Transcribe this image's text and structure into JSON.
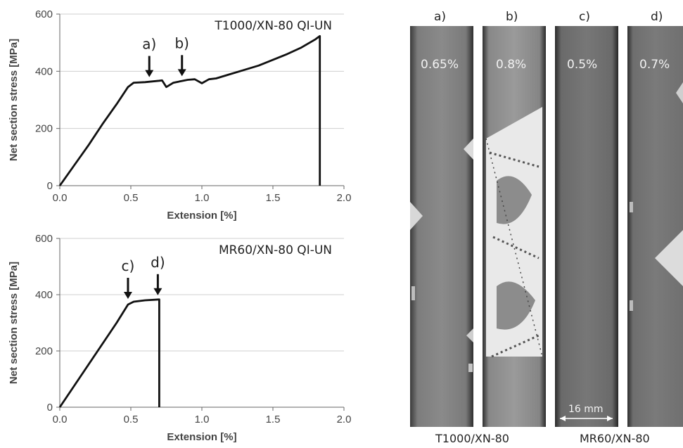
{
  "chart_data": [
    {
      "type": "line",
      "title": "T1000/XN-80 QI-UN",
      "xlabel": "Extension [%]",
      "ylabel": "Net section stress [MPa]",
      "xlim": [
        0,
        2.0
      ],
      "ylim": [
        0,
        600
      ],
      "xticks": [
        "0.0",
        "0.5",
        "1.0",
        "1.5",
        "2.0"
      ],
      "yticks": [
        "0",
        "200",
        "400",
        "600"
      ],
      "grid": true,
      "series": [
        {
          "x": [
            0,
            0.1,
            0.2,
            0.3,
            0.4,
            0.48,
            0.52,
            0.6,
            0.7,
            0.72,
            0.75,
            0.8,
            0.9,
            0.95,
            1.0,
            1.05,
            1.1,
            1.2,
            1.3,
            1.4,
            1.5,
            1.6,
            1.7,
            1.8,
            1.83,
            1.83
          ],
          "y": [
            0,
            70,
            140,
            215,
            285,
            345,
            360,
            362,
            367,
            368,
            345,
            360,
            370,
            372,
            358,
            372,
            375,
            390,
            405,
            420,
            440,
            460,
            483,
            512,
            523,
            0
          ]
        }
      ],
      "annotations": [
        {
          "text": "a)",
          "x": 0.63,
          "y": 365
        },
        {
          "text": "b)",
          "x": 0.86,
          "y": 368
        }
      ]
    },
    {
      "type": "line",
      "title": "MR60/XN-80 QI-UN",
      "xlabel": "Extension [%]",
      "ylabel": "Net section stress [MPa]",
      "xlim": [
        0,
        2.0
      ],
      "ylim": [
        0,
        600
      ],
      "xticks": [
        "0.0",
        "0.5",
        "1.0",
        "1.5",
        "2.0"
      ],
      "yticks": [
        "0",
        "200",
        "400",
        "600"
      ],
      "grid": true,
      "series": [
        {
          "x": [
            0,
            0.1,
            0.2,
            0.3,
            0.4,
            0.48,
            0.52,
            0.6,
            0.7,
            0.7
          ],
          "y": [
            0,
            75,
            150,
            225,
            300,
            365,
            375,
            380,
            383,
            0
          ]
        }
      ],
      "annotations": [
        {
          "text": "c)",
          "x": 0.48,
          "y": 370
        },
        {
          "text": "d)",
          "x": 0.69,
          "y": 383
        }
      ]
    }
  ],
  "xray_panels": [
    {
      "label": "a)",
      "percent": "0.65%"
    },
    {
      "label": "b)",
      "percent": "0.8%"
    },
    {
      "label": "c)",
      "percent": "0.5%"
    },
    {
      "label": "d)",
      "percent": "0.7%"
    }
  ],
  "group_labels": [
    "T1000/XN-80",
    "MR60/XN-80"
  ],
  "scale_bar": "16 mm"
}
